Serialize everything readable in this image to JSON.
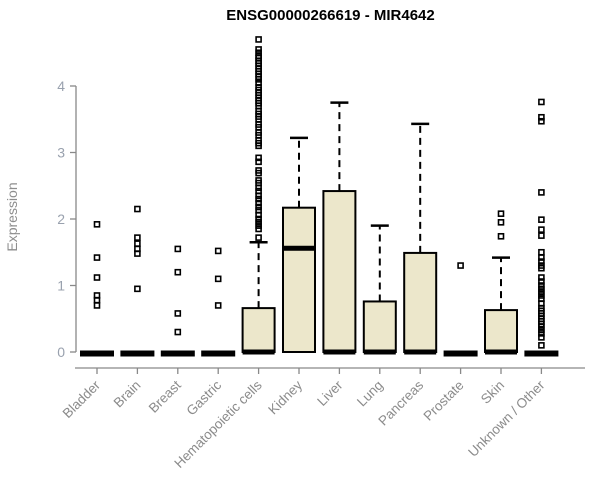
{
  "chart_data": {
    "type": "boxplot",
    "title": "ENSG00000266619 - MIR4642",
    "ylabel": "Expression",
    "xlabel": "",
    "ylim": [
      0,
      4.75
    ],
    "yticks": [
      0,
      1,
      2,
      3,
      4
    ],
    "grid": false,
    "legend_position": "none",
    "x_tick_rotation": 45,
    "categories": [
      "Bladder",
      "Brain",
      "Breast",
      "Gastric",
      "Hematopoietic cells",
      "Kidney",
      "Liver",
      "Lung",
      "Pancreas",
      "Prostate",
      "Skin",
      "Unknown / Other"
    ],
    "boxes": [
      {
        "category": "Bladder",
        "q1": 0,
        "median": 0,
        "q3": 0,
        "whisker_low": 0,
        "whisker_high": 0,
        "outliers": [
          1.92,
          1.42,
          1.12,
          0.85,
          0.78,
          0.7
        ]
      },
      {
        "category": "Brain",
        "q1": 0,
        "median": 0,
        "q3": 0,
        "whisker_low": 0,
        "whisker_high": 0,
        "outliers": [
          2.15,
          1.72,
          1.63,
          1.55,
          1.48,
          0.95
        ]
      },
      {
        "category": "Breast",
        "q1": 0,
        "median": 0,
        "q3": 0,
        "whisker_low": 0,
        "whisker_high": 0,
        "outliers": [
          1.55,
          1.2,
          0.58,
          0.3
        ]
      },
      {
        "category": "Gastric",
        "q1": 0,
        "median": 0,
        "q3": 0,
        "whisker_low": 0,
        "whisker_high": 0,
        "outliers": [
          1.52,
          1.1,
          0.7
        ]
      },
      {
        "category": "Hematopoietic cells",
        "q1": 0,
        "median": 0,
        "q3": 0.66,
        "whisker_low": 0,
        "whisker_high": 1.65,
        "outliers": [
          4.7,
          4.55,
          4.5,
          4.45,
          4.42,
          4.38,
          4.34,
          4.3,
          4.26,
          4.22,
          4.18,
          4.14,
          4.1,
          4.05,
          3.98,
          3.94,
          3.9,
          3.86,
          3.82,
          3.78,
          3.74,
          3.7,
          3.62,
          3.58,
          3.54,
          3.5,
          3.42,
          3.38,
          3.3,
          3.26,
          3.18,
          3.14,
          3.1,
          2.92,
          2.86,
          2.73,
          2.69,
          2.58,
          2.54,
          2.47,
          2.42,
          2.35,
          2.3,
          2.24,
          2.18,
          2.13,
          2.06,
          2.0,
          1.95,
          1.9,
          1.85,
          1.72
        ]
      },
      {
        "category": "Kidney",
        "q1": 0,
        "median": 1.56,
        "q3": 2.17,
        "whisker_low": 0,
        "whisker_high": 3.22,
        "outliers": []
      },
      {
        "category": "Liver",
        "q1": 0,
        "median": 0,
        "q3": 2.42,
        "whisker_low": 0,
        "whisker_high": 3.75,
        "outliers": []
      },
      {
        "category": "Lung",
        "q1": 0,
        "median": 0,
        "q3": 0.76,
        "whisker_low": 0,
        "whisker_high": 1.9,
        "outliers": []
      },
      {
        "category": "Pancreas",
        "q1": 0,
        "median": 0,
        "q3": 1.49,
        "whisker_low": 0,
        "whisker_high": 3.43,
        "outliers": []
      },
      {
        "category": "Prostate",
        "q1": 0,
        "median": 0,
        "q3": 0,
        "whisker_low": 0,
        "whisker_high": 0,
        "outliers": [
          1.3
        ]
      },
      {
        "category": "Skin",
        "q1": 0,
        "median": 0,
        "q3": 0.63,
        "whisker_low": 0,
        "whisker_high": 1.42,
        "outliers": [
          2.08,
          1.95,
          1.74
        ]
      },
      {
        "category": "Unknown / Other",
        "q1": 0,
        "median": 0,
        "q3": 0,
        "whisker_low": 0,
        "whisker_high": 0,
        "outliers": [
          3.76,
          3.53,
          3.47,
          2.4,
          1.99,
          1.84,
          1.75,
          1.5,
          1.42,
          1.36,
          1.3,
          1.26,
          1.12,
          1.06,
          1.0,
          0.95,
          0.9,
          0.85,
          0.8,
          0.73,
          0.66,
          0.62,
          0.58,
          0.54,
          0.5,
          0.46,
          0.42,
          0.38,
          0.33,
          0.28,
          0.22,
          0.1
        ]
      }
    ],
    "colors": {
      "box_fill": "#ece7cb",
      "box_stroke": "#000000",
      "median": "#000000",
      "whisker": "#000000",
      "outlier": "#000000",
      "axis": "#898989",
      "y_tick_label": "#99a1ae",
      "x_tick_label": "#8b8b8b",
      "title": "#000000",
      "background": "#ffffff"
    }
  }
}
